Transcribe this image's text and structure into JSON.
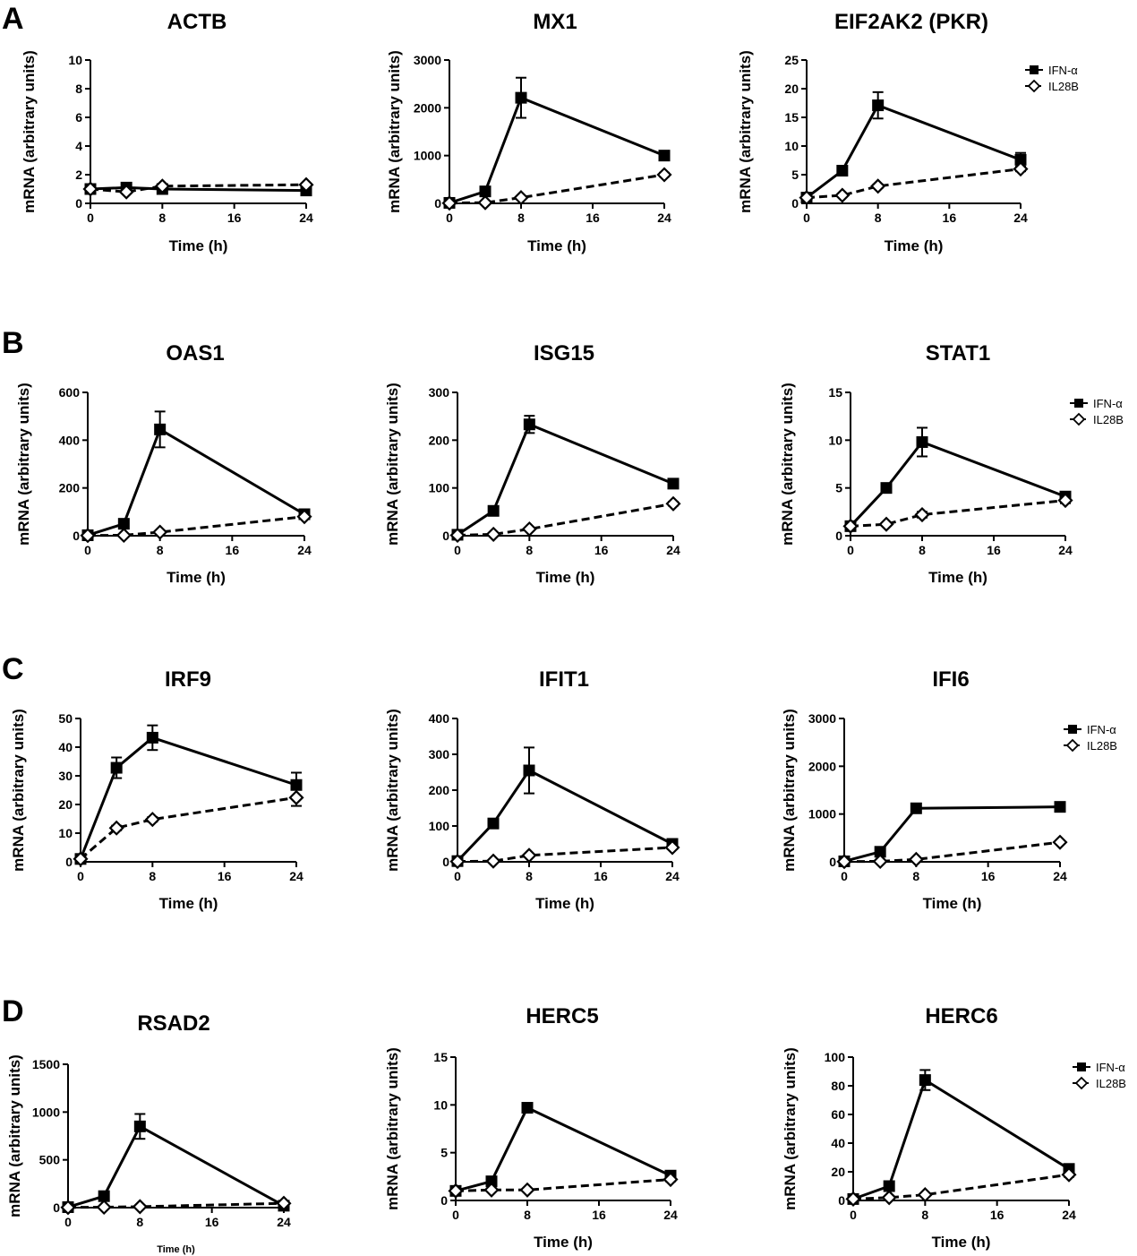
{
  "figure": {
    "panel_labels": [
      "A",
      "B",
      "C",
      "D"
    ],
    "colors": {
      "line": "#000000",
      "background": "#ffffff"
    }
  },
  "chart_data": [
    {
      "type": "line",
      "title": "ACTB",
      "xlabel": "Time (h)",
      "ylabel": "mRNA (arbitrary units)",
      "x": [
        0,
        4,
        8,
        24
      ],
      "xticks": [
        0,
        8,
        16,
        24
      ],
      "xlim": [
        0,
        24
      ],
      "yticks": [
        0,
        2,
        4,
        6,
        8,
        10
      ],
      "ylim": [
        0,
        10
      ],
      "grid": false,
      "legend": null,
      "series": [
        {
          "name": "IFN-α",
          "marker": "filled-square",
          "line": "solid",
          "values": [
            1.0,
            1.1,
            1.0,
            0.9
          ],
          "errors": [
            0.1,
            0.1,
            0.1,
            0.1
          ]
        },
        {
          "name": "IL28B",
          "marker": "open-diamond",
          "line": "dashed",
          "values": [
            1.0,
            0.8,
            1.2,
            1.3
          ],
          "errors": [
            0.1,
            0.1,
            0.1,
            0.1
          ]
        }
      ]
    },
    {
      "type": "line",
      "title": "MX1",
      "xlabel": "Time (h)",
      "ylabel": "mRNA (arbitrary units)",
      "x": [
        0,
        4,
        8,
        24
      ],
      "xticks": [
        0,
        8,
        16,
        24
      ],
      "xlim": [
        0,
        24
      ],
      "yticks": [
        0,
        1000,
        2000,
        3000
      ],
      "ylim": [
        0,
        3000
      ],
      "grid": false,
      "legend": null,
      "series": [
        {
          "name": "IFN-α",
          "marker": "filled-square",
          "line": "solid",
          "values": [
            10,
            250,
            2210,
            1000
          ],
          "errors": [
            0,
            40,
            420,
            60
          ]
        },
        {
          "name": "IL28B",
          "marker": "open-diamond",
          "line": "dashed",
          "values": [
            5,
            15,
            120,
            600
          ],
          "errors": [
            0,
            5,
            20,
            40
          ]
        }
      ]
    },
    {
      "type": "line",
      "title": "EIF2AK2 (PKR)",
      "xlabel": "Time (h)",
      "ylabel": "mRNA (arbitrary units)",
      "x": [
        0,
        4,
        8,
        24
      ],
      "xticks": [
        0,
        8,
        16,
        24
      ],
      "xlim": [
        0,
        24
      ],
      "yticks": [
        0,
        5,
        10,
        15,
        20,
        25
      ],
      "ylim": [
        0,
        25
      ],
      "grid": false,
      "legend": "top-right",
      "series": [
        {
          "name": "IFN-α",
          "marker": "filled-square",
          "line": "solid",
          "values": [
            1.0,
            5.7,
            17.1,
            7.6
          ],
          "errors": [
            0.1,
            0.5,
            2.3,
            1.2
          ]
        },
        {
          "name": "IL28B",
          "marker": "open-diamond",
          "line": "dashed",
          "values": [
            1.0,
            1.4,
            3.0,
            6.0
          ],
          "errors": [
            0.1,
            0.2,
            0.3,
            0.4
          ]
        }
      ]
    },
    {
      "type": "line",
      "title": "OAS1",
      "xlabel": "Time (h)",
      "ylabel": "mRNA (arbitrary units)",
      "x": [
        0,
        4,
        8,
        24
      ],
      "xticks": [
        0,
        8,
        16,
        24
      ],
      "xlim": [
        0,
        24
      ],
      "yticks": [
        0,
        200,
        400,
        600
      ],
      "ylim": [
        0,
        600
      ],
      "grid": false,
      "legend": null,
      "series": [
        {
          "name": "IFN-α",
          "marker": "filled-square",
          "line": "solid",
          "values": [
            2,
            50,
            445,
            90
          ],
          "errors": [
            0,
            8,
            75,
            10
          ]
        },
        {
          "name": "IL28B",
          "marker": "open-diamond",
          "line": "dashed",
          "values": [
            1,
            2,
            15,
            80
          ],
          "errors": [
            0,
            1,
            4,
            8
          ]
        }
      ]
    },
    {
      "type": "line",
      "title": "ISG15",
      "xlabel": "Time (h)",
      "ylabel": "mRNA (arbitrary units)",
      "x": [
        0,
        4,
        8,
        24
      ],
      "xticks": [
        0,
        8,
        16,
        24
      ],
      "xlim": [
        0,
        24
      ],
      "yticks": [
        0,
        100,
        200,
        300
      ],
      "ylim": [
        0,
        300
      ],
      "grid": false,
      "legend": null,
      "series": [
        {
          "name": "IFN-α",
          "marker": "filled-square",
          "line": "solid",
          "values": [
            2,
            52,
            233,
            109
          ],
          "errors": [
            0,
            4,
            18,
            6
          ]
        },
        {
          "name": "IL28B",
          "marker": "open-diamond",
          "line": "dashed",
          "values": [
            1,
            3,
            14,
            67
          ],
          "errors": [
            0,
            1,
            2,
            4
          ]
        }
      ]
    },
    {
      "type": "line",
      "title": "STAT1",
      "xlabel": "Time (h)",
      "ylabel": "mRNA (arbitrary units)",
      "x": [
        0,
        4,
        8,
        24
      ],
      "xticks": [
        0,
        8,
        16,
        24
      ],
      "xlim": [
        0,
        24
      ],
      "yticks": [
        0,
        5,
        10,
        15
      ],
      "ylim": [
        0,
        15
      ],
      "grid": false,
      "legend": "top-right",
      "series": [
        {
          "name": "IFN-α",
          "marker": "filled-square",
          "line": "solid",
          "values": [
            1.0,
            5.0,
            9.8,
            4.1
          ],
          "errors": [
            0.1,
            0.3,
            1.5,
            0.4
          ]
        },
        {
          "name": "IL28B",
          "marker": "open-diamond",
          "line": "dashed",
          "values": [
            1.0,
            1.2,
            2.2,
            3.7
          ],
          "errors": [
            0.1,
            0.1,
            0.3,
            0.3
          ]
        }
      ]
    },
    {
      "type": "line",
      "title": "IRF9",
      "xlabel": "Time (h)",
      "ylabel": "mRNA (arbitrary units)",
      "x": [
        0,
        4,
        8,
        24
      ],
      "xticks": [
        0,
        8,
        16,
        24
      ],
      "xlim": [
        0,
        24
      ],
      "yticks": [
        0,
        10,
        20,
        30,
        40,
        50
      ],
      "ylim": [
        0,
        50
      ],
      "grid": false,
      "legend": null,
      "series": [
        {
          "name": "IFN-α",
          "marker": "filled-square",
          "line": "solid",
          "values": [
            1.0,
            32.8,
            43.3,
            26.8
          ],
          "errors": [
            0.2,
            3.6,
            4.3,
            4.3
          ]
        },
        {
          "name": "IL28B",
          "marker": "open-diamond",
          "line": "dashed",
          "values": [
            1.0,
            11.8,
            14.8,
            22.4
          ],
          "errors": [
            0.2,
            0.8,
            0.8,
            2.9
          ]
        }
      ]
    },
    {
      "type": "line",
      "title": "IFIT1",
      "xlabel": "Time (h)",
      "ylabel": "mRNA (arbitrary units)",
      "x": [
        0,
        4,
        8,
        24
      ],
      "xticks": [
        0,
        8,
        16,
        24
      ],
      "xlim": [
        0,
        24
      ],
      "yticks": [
        0,
        100,
        200,
        300,
        400
      ],
      "ylim": [
        0,
        400
      ],
      "grid": false,
      "legend": null,
      "series": [
        {
          "name": "IFN-α",
          "marker": "filled-square",
          "line": "solid",
          "values": [
            2,
            107,
            255,
            50
          ],
          "errors": [
            0,
            6,
            64,
            6
          ]
        },
        {
          "name": "IL28B",
          "marker": "open-diamond",
          "line": "dashed",
          "values": [
            1,
            2,
            18,
            40
          ],
          "errors": [
            0,
            1,
            3,
            4
          ]
        }
      ]
    },
    {
      "type": "line",
      "title": "IFI6",
      "xlabel": "Time (h)",
      "ylabel": "mRNA (arbitrary units)",
      "x": [
        0,
        4,
        8,
        24
      ],
      "xticks": [
        0,
        8,
        16,
        24
      ],
      "xlim": [
        0,
        24
      ],
      "yticks": [
        0,
        1000,
        2000,
        3000
      ],
      "ylim": [
        0,
        3000
      ],
      "grid": false,
      "legend": "top-right",
      "series": [
        {
          "name": "IFN-α",
          "marker": "filled-square",
          "line": "solid",
          "values": [
            10,
            210,
            1120,
            1150
          ],
          "errors": [
            0,
            20,
            50,
            40
          ]
        },
        {
          "name": "IL28B",
          "marker": "open-diamond",
          "line": "dashed",
          "values": [
            5,
            10,
            50,
            410
          ],
          "errors": [
            0,
            3,
            8,
            25
          ]
        }
      ]
    },
    {
      "type": "line",
      "title": "RSAD2",
      "xlabel": "Time (h)",
      "ylabel": "mRNA (arbitrary units)",
      "x": [
        0,
        4,
        8,
        24
      ],
      "xticks": [
        0,
        8,
        16,
        24
      ],
      "xlim": [
        0,
        24
      ],
      "yticks": [
        0,
        500,
        1000,
        1500
      ],
      "ylim": [
        0,
        1500
      ],
      "grid": false,
      "legend": null,
      "series": [
        {
          "name": "IFN-α",
          "marker": "filled-square",
          "line": "solid",
          "values": [
            5,
            120,
            850,
            20
          ],
          "errors": [
            0,
            15,
            130,
            5
          ]
        },
        {
          "name": "IL28B",
          "marker": "open-diamond",
          "line": "dashed",
          "values": [
            2,
            5,
            10,
            45
          ],
          "errors": [
            0,
            2,
            3,
            6
          ]
        }
      ]
    },
    {
      "type": "line",
      "title": "HERC5",
      "xlabel": "Time (h)",
      "ylabel": "mRNA (arbitrary units)",
      "x": [
        0,
        4,
        8,
        24
      ],
      "xticks": [
        0,
        8,
        16,
        24
      ],
      "xlim": [
        0,
        24
      ],
      "yticks": [
        0,
        5,
        10,
        15
      ],
      "ylim": [
        0,
        15
      ],
      "grid": false,
      "legend": null,
      "series": [
        {
          "name": "IFN-α",
          "marker": "filled-square",
          "line": "solid",
          "values": [
            1.0,
            2.0,
            9.7,
            2.6
          ],
          "errors": [
            0.1,
            0.2,
            0.3,
            0.2
          ]
        },
        {
          "name": "IL28B",
          "marker": "open-diamond",
          "line": "dashed",
          "values": [
            1.0,
            1.1,
            1.1,
            2.2
          ],
          "errors": [
            0.1,
            0.1,
            0.1,
            0.2
          ]
        }
      ]
    },
    {
      "type": "line",
      "title": "HERC6",
      "xlabel": "Time (h)",
      "ylabel": "mRNA (arbitrary units)",
      "x": [
        0,
        4,
        8,
        24
      ],
      "xticks": [
        0,
        8,
        16,
        24
      ],
      "xlim": [
        0,
        24
      ],
      "yticks": [
        0,
        20,
        40,
        60,
        80,
        100
      ],
      "ylim": [
        0,
        100
      ],
      "grid": false,
      "legend": "top-right",
      "series": [
        {
          "name": "IFN-α",
          "marker": "filled-square",
          "line": "solid",
          "values": [
            1,
            10,
            84,
            22
          ],
          "errors": [
            0,
            1,
            7,
            2
          ]
        },
        {
          "name": "IL28B",
          "marker": "open-diamond",
          "line": "dashed",
          "values": [
            1,
            2,
            4,
            18
          ],
          "errors": [
            0,
            0.5,
            0.5,
            1.5
          ]
        }
      ]
    }
  ]
}
